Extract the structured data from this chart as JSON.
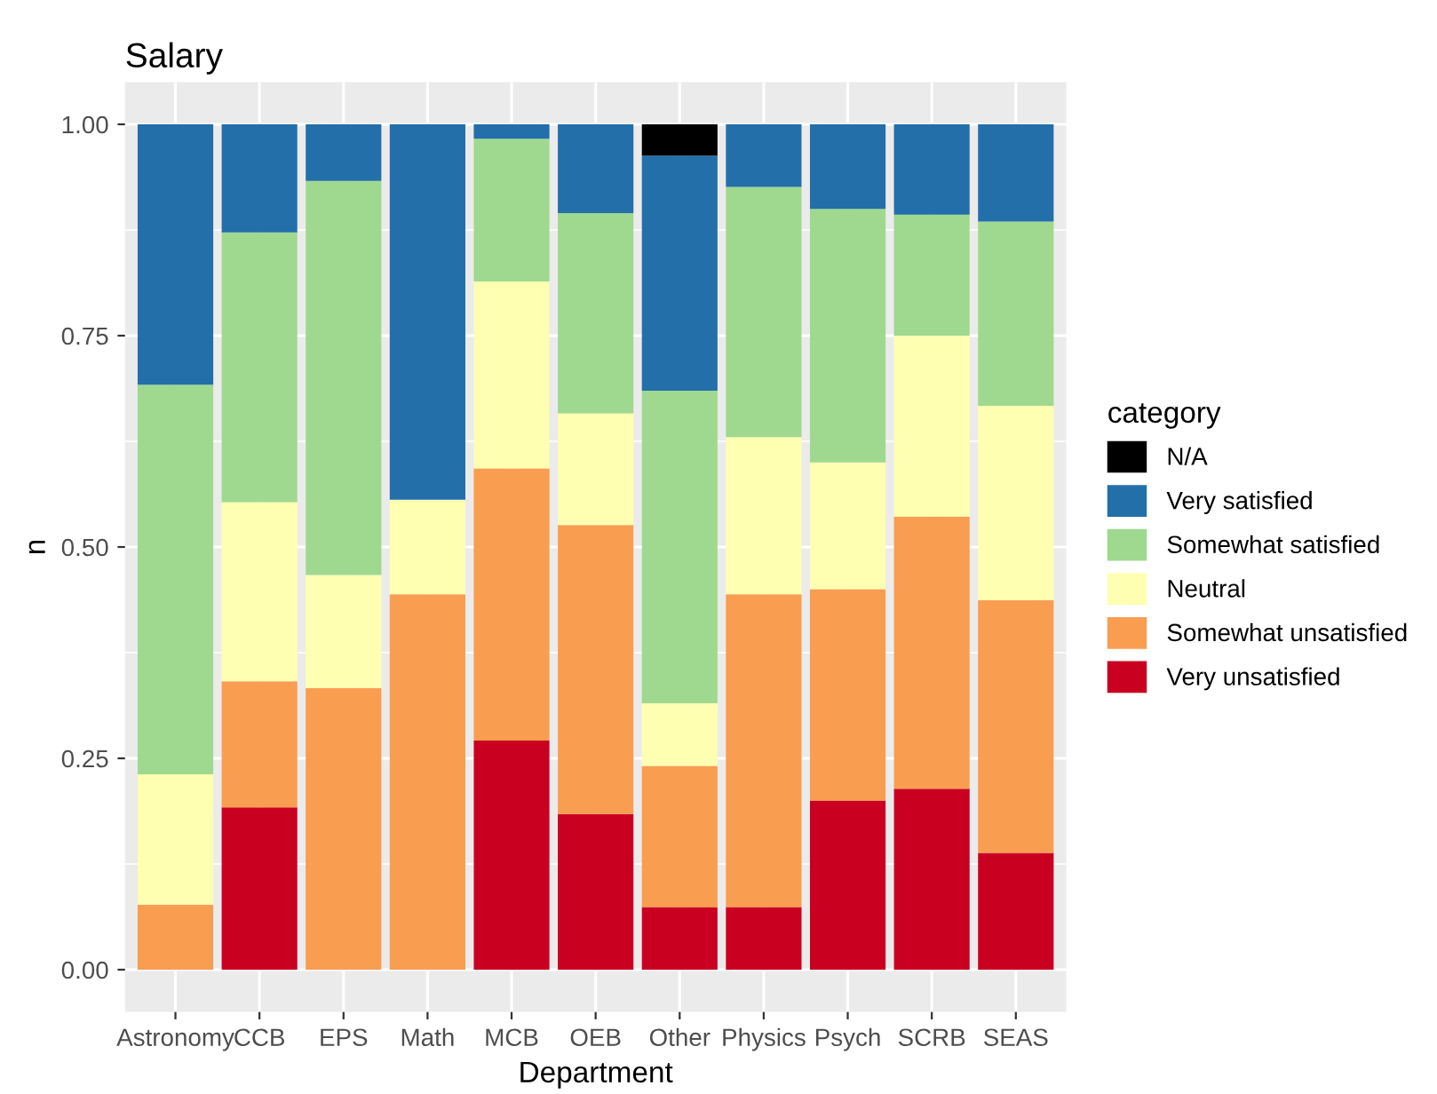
{
  "chart_data": {
    "type": "bar",
    "title": "Salary",
    "xlabel": "Department",
    "ylabel": "n",
    "legend_title": "category",
    "categories": [
      "Astronomy",
      "CCB",
      "EPS",
      "Math",
      "MCB",
      "OEB",
      "Other",
      "Physics",
      "Psych",
      "SCRB",
      "SEAS"
    ],
    "stacked": true,
    "legend": "right",
    "grid": true,
    "ylim": [
      -0.05,
      1.05
    ],
    "yticks": [
      {
        "value": 0,
        "label": "0.00"
      },
      {
        "value": 0.25,
        "label": "0.25"
      },
      {
        "value": 0.5,
        "label": "0.50"
      },
      {
        "value": 0.75,
        "label": "0.75"
      },
      {
        "value": 1,
        "label": "1.00"
      }
    ],
    "series": [
      {
        "name": "Very unsatisfied",
        "color": "#ca0020",
        "values": [
          0,
          0.192,
          0,
          0,
          0.271,
          0.184,
          0.074,
          0.074,
          0.2,
          0.214,
          0.138
        ]
      },
      {
        "name": "Somewhat unsatisfied",
        "color": "#f99d50",
        "values": [
          0.077,
          0.149,
          0.333,
          0.444,
          0.322,
          0.342,
          0.167,
          0.37,
          0.25,
          0.322,
          0.299
        ]
      },
      {
        "name": "Neutral",
        "color": "#ffffb2",
        "values": [
          0.154,
          0.212,
          0.134,
          0.112,
          0.221,
          0.132,
          0.074,
          0.186,
          0.15,
          0.214,
          0.23
        ]
      },
      {
        "name": "Somewhat satisfied",
        "color": "#9fd98f",
        "values": [
          0.461,
          0.319,
          0.466,
          0,
          0.169,
          0.237,
          0.37,
          0.296,
          0.3,
          0.143,
          0.218
        ]
      },
      {
        "name": "Very satisfied",
        "color": "#236faa",
        "values": [
          0.308,
          0.128,
          0.067,
          0.444,
          0.017,
          0.105,
          0.278,
          0.074,
          0.1,
          0.107,
          0.115
        ]
      },
      {
        "name": "N/A",
        "color": "#000000",
        "values": [
          0,
          0,
          0,
          0,
          0,
          0,
          0.037,
          0,
          0,
          0,
          0
        ]
      }
    ]
  }
}
